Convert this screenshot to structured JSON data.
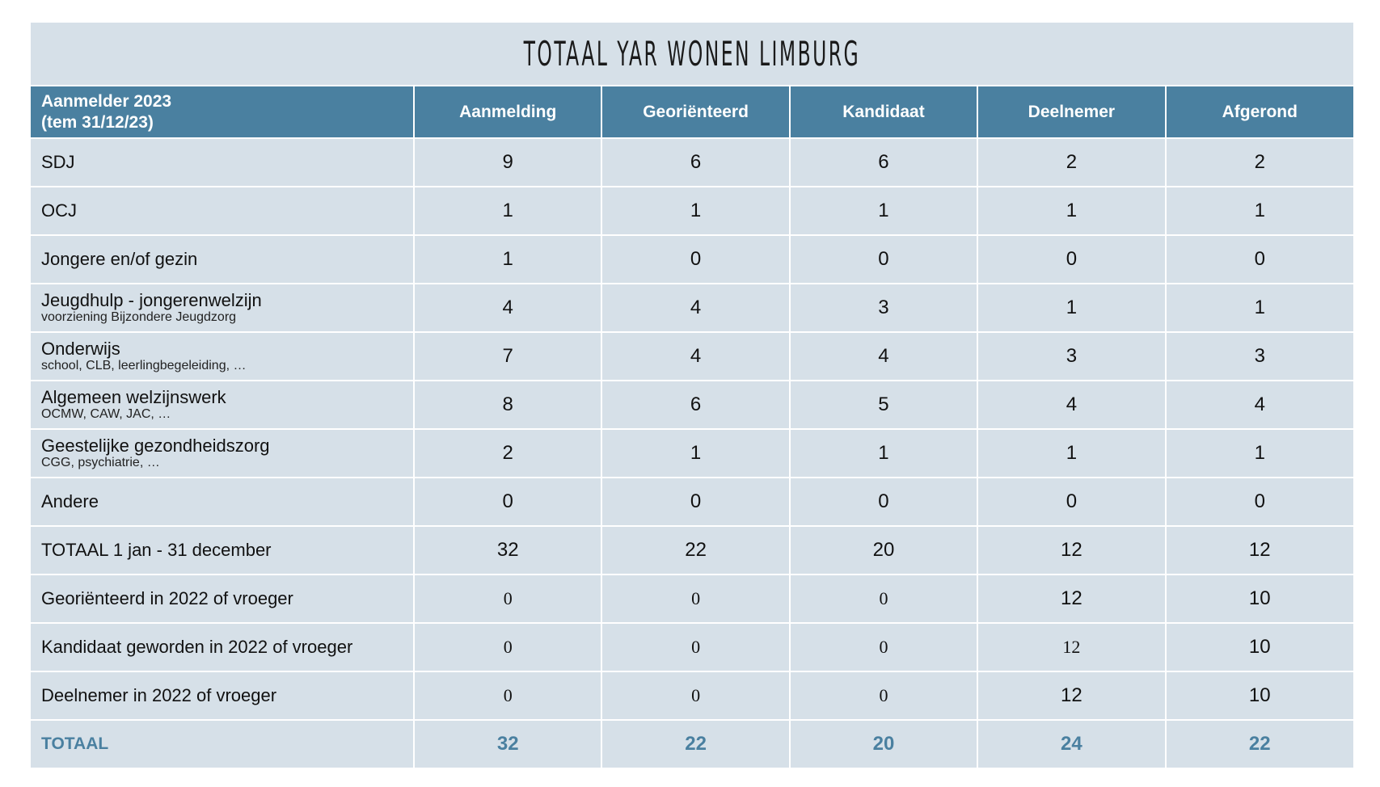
{
  "title": "TOTAAL YAR WONEN LIMBURG",
  "header": {
    "first_line1": "Aanmelder 2023",
    "first_line2": "(tem 31/12/23)",
    "columns": [
      "Aanmelding",
      "Georiënteerd",
      "Kandidaat",
      "Deelnemer",
      "Afgerond"
    ]
  },
  "rows": [
    {
      "label": "SDJ",
      "sub": "",
      "values": [
        "9",
        "6",
        "6",
        "2",
        "2"
      ]
    },
    {
      "label": "OCJ",
      "sub": "",
      "values": [
        "1",
        "1",
        "1",
        "1",
        "1"
      ]
    },
    {
      "label": "Jongere en/of gezin",
      "sub": "",
      "values": [
        "1",
        "0",
        "0",
        "0",
        "0"
      ]
    },
    {
      "label": "Jeugdhulp - jongerenwelzijn",
      "sub": "voorziening Bijzondere Jeugdzorg",
      "values": [
        "4",
        "4",
        "3",
        "1",
        "1"
      ]
    },
    {
      "label": "Onderwijs",
      "sub": "school, CLB, leerlingbegeleiding, …",
      "values": [
        "7",
        "4",
        "4",
        "3",
        "3"
      ]
    },
    {
      "label": "Algemeen welzijnswerk",
      "sub": "OCMW, CAW, JAC, …",
      "values": [
        "8",
        "6",
        "5",
        "4",
        "4"
      ]
    },
    {
      "label": "Geestelijke gezondheidszorg",
      "sub": "CGG, psychiatrie, …",
      "values": [
        "2",
        "1",
        "1",
        "1",
        "1"
      ]
    },
    {
      "label": "Andere",
      "sub": "",
      "values": [
        "0",
        "0",
        "0",
        "0",
        "0"
      ]
    }
  ],
  "total_period": {
    "label": "TOTAAL 1 jan - 31 december",
    "values": [
      "32",
      "22",
      "20",
      "12",
      "12"
    ]
  },
  "prior_rows": [
    {
      "label": "Georiënteerd in 2022 of vroeger",
      "values": [
        "0",
        "0",
        "0",
        "12",
        "10"
      ]
    },
    {
      "label": "Kandidaat geworden in 2022 of vroeger",
      "values": [
        "0",
        "0",
        "0",
        "12",
        "10"
      ]
    },
    {
      "label": "Deelnemer in 2022 of vroeger",
      "values": [
        "0",
        "0",
        "0",
        "12",
        "10"
      ]
    }
  ],
  "grand_total": {
    "label": "TOTAAL",
    "values": [
      "32",
      "22",
      "20",
      "24",
      "22"
    ]
  },
  "colors": {
    "header_bg": "#4a80a0",
    "body_bg": "#d6e0e8",
    "accent_text": "#4a80a0"
  }
}
